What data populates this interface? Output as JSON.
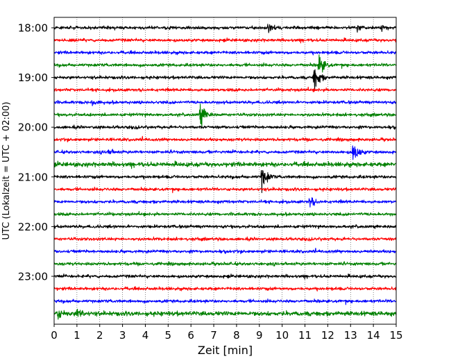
{
  "chart_data": {
    "type": "line",
    "chart_kind": "helicorder (seismogram drum plot)",
    "xlabel": "Zeit  [min]",
    "ylabel": "UTC (Lokalzeit = UTC + 02:00)",
    "xlim": [
      0,
      15
    ],
    "x_ticks": [
      "0",
      "1",
      "2",
      "3",
      "4",
      "5",
      "6",
      "7",
      "8",
      "9",
      "10",
      "11",
      "12",
      "13",
      "14",
      "15"
    ],
    "y_ticks": [
      "18:00",
      "19:00",
      "20:00",
      "21:00",
      "22:00",
      "23:00"
    ],
    "minutes_per_line": 15,
    "start_time": "18:00",
    "grid": "vertical dotted lines at every minute",
    "trace_colors": [
      "#000000",
      "#ff0000",
      "#0000ff",
      "#008000"
    ],
    "traces": [
      {
        "start": "18:00",
        "color": "#000000",
        "amplitude": "low",
        "events": [
          {
            "minute": 9.4,
            "amplitude": "low"
          },
          {
            "minute": 13.3,
            "amplitude": "low"
          },
          {
            "minute": 14.3,
            "amplitude": "low"
          }
        ]
      },
      {
        "start": "18:15",
        "color": "#ff0000",
        "amplitude": "low",
        "events": []
      },
      {
        "start": "18:30",
        "color": "#0000ff",
        "amplitude": "low",
        "events": []
      },
      {
        "start": "18:45",
        "color": "#008000",
        "amplitude": "low",
        "events": [
          {
            "minute": 11.6,
            "amplitude": "high"
          }
        ]
      },
      {
        "start": "19:00",
        "color": "#000000",
        "amplitude": "low",
        "events": [
          {
            "minute": 11.4,
            "amplitude": "high"
          }
        ]
      },
      {
        "start": "19:15",
        "color": "#ff0000",
        "amplitude": "low",
        "events": []
      },
      {
        "start": "19:30",
        "color": "#0000ff",
        "amplitude": "low",
        "events": [
          {
            "minute": 1.6,
            "amplitude": "low"
          }
        ]
      },
      {
        "start": "19:45",
        "color": "#008000",
        "amplitude": "low",
        "events": [
          {
            "minute": 6.4,
            "amplitude": "high"
          }
        ]
      },
      {
        "start": "20:00",
        "color": "#000000",
        "amplitude": "low",
        "events": []
      },
      {
        "start": "20:15",
        "color": "#ff0000",
        "amplitude": "low",
        "events": []
      },
      {
        "start": "20:30",
        "color": "#0000ff",
        "amplitude": "low",
        "events": [
          {
            "minute": 2.3,
            "amplitude": "low"
          },
          {
            "minute": 13.1,
            "amplitude": "high"
          }
        ]
      },
      {
        "start": "20:45",
        "color": "#008000",
        "amplitude": "medium",
        "events": []
      },
      {
        "start": "21:00",
        "color": "#000000",
        "amplitude": "low",
        "events": [
          {
            "minute": 9.1,
            "amplitude": "high"
          }
        ]
      },
      {
        "start": "21:15",
        "color": "#ff0000",
        "amplitude": "low",
        "events": []
      },
      {
        "start": "21:30",
        "color": "#0000ff",
        "amplitude": "low",
        "events": [
          {
            "minute": 11.2,
            "amplitude": "medium"
          }
        ]
      },
      {
        "start": "21:45",
        "color": "#008000",
        "amplitude": "low",
        "events": []
      },
      {
        "start": "22:00",
        "color": "#000000",
        "amplitude": "low",
        "events": []
      },
      {
        "start": "22:15",
        "color": "#ff0000",
        "amplitude": "low",
        "events": []
      },
      {
        "start": "22:30",
        "color": "#0000ff",
        "amplitude": "low",
        "events": []
      },
      {
        "start": "22:45",
        "color": "#008000",
        "amplitude": "low",
        "events": []
      },
      {
        "start": "23:00",
        "color": "#000000",
        "amplitude": "low",
        "events": []
      },
      {
        "start": "23:15",
        "color": "#ff0000",
        "amplitude": "low",
        "events": []
      },
      {
        "start": "23:30",
        "color": "#0000ff",
        "amplitude": "low",
        "events": []
      },
      {
        "start": "23:45",
        "color": "#008000",
        "amplitude": "medium",
        "events": [
          {
            "minute": 0.15,
            "amplitude": "medium"
          },
          {
            "minute": 1.0,
            "amplitude": "medium"
          }
        ]
      }
    ]
  }
}
